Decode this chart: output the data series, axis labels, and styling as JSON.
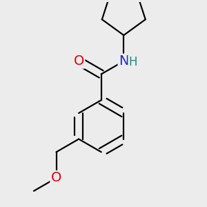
{
  "background_color": "#ececec",
  "bond_color": "#000000",
  "bond_width": 1.6,
  "atom_colors": {
    "O": "#dd0000",
    "N": "#2222cc",
    "H": "#228888",
    "C": "#000000"
  },
  "font_size_atom": 14,
  "font_size_H": 12
}
